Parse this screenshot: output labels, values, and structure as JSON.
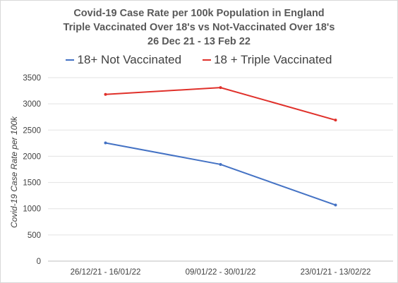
{
  "chart_data": {
    "type": "line",
    "title_lines": [
      "Covid-19 Case Rate per 100k Population in England",
      "Triple Vaccinated Over 18's vs Not-Vaccinated Over 18's",
      "26 Dec 21 - 13 Feb 22"
    ],
    "ylabel": "Covid-19 Case Rate per 100k",
    "xlabel": "",
    "categories": [
      "26/12/21 - 16/01/22",
      "09/01/22 - 30/01/22",
      "23/01/21 - 13/02/22"
    ],
    "ylim": [
      0,
      3500
    ],
    "yticks": [
      0,
      500,
      1000,
      1500,
      2000,
      2500,
      3000,
      3500
    ],
    "grid": true,
    "legend_position": "top",
    "series": [
      {
        "name": "18+ Not Vaccinated",
        "color": "#4472c4",
        "values": [
          2255,
          1845,
          1070
        ]
      },
      {
        "name": "18 + Triple Vaccinated",
        "color": "#e0302a",
        "values": [
          3180,
          3310,
          2690
        ]
      }
    ]
  }
}
